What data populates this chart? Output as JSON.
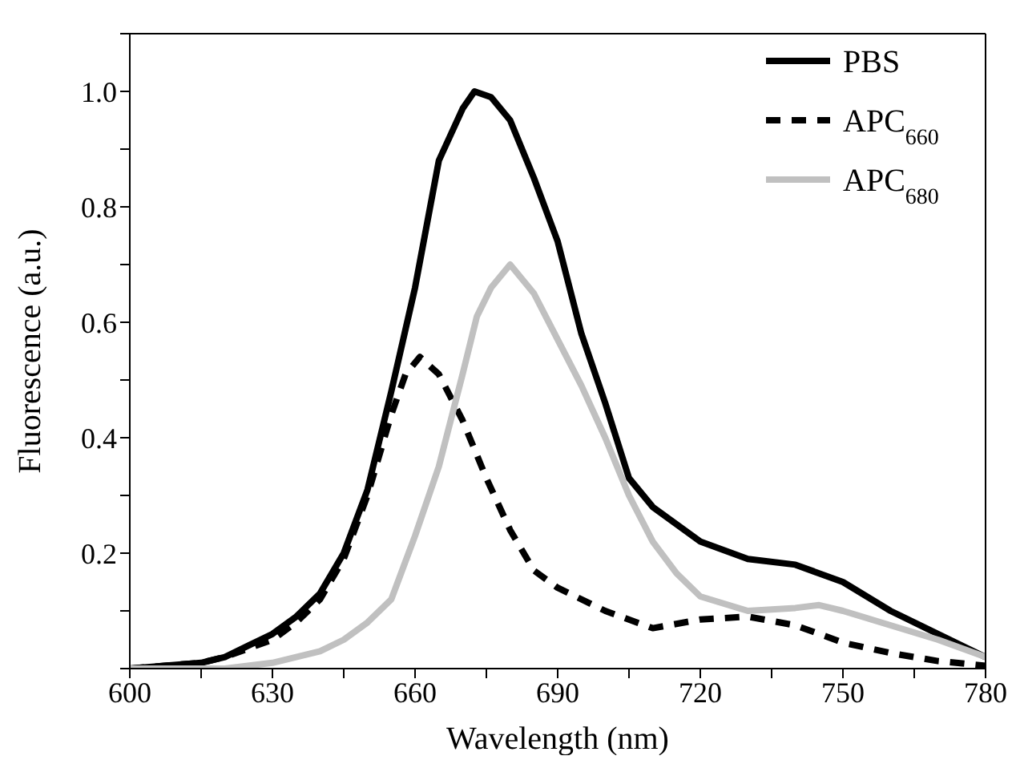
{
  "chart_data": {
    "type": "line",
    "xlabel": "Wavelength (nm)",
    "ylabel": "Fluorescence (a.u.)",
    "xlim": [
      600,
      780
    ],
    "ylim": [
      0,
      1.1
    ],
    "xticks": [
      600,
      {
        "value": 615,
        "label": null
      },
      630,
      {
        "value": 645,
        "label": null
      },
      660,
      {
        "value": 675,
        "label": null
      },
      690,
      {
        "value": 705,
        "label": null
      },
      720,
      {
        "value": 735,
        "label": null
      },
      750,
      {
        "value": 765,
        "label": null
      },
      780
    ],
    "yticks": [
      {
        "value": 0,
        "label": null
      },
      {
        "value": 0.1,
        "label": null
      },
      0.2,
      {
        "value": 0.3,
        "label": null
      },
      0.4,
      {
        "value": 0.5,
        "label": null
      },
      0.6,
      {
        "value": 0.7,
        "label": null
      },
      0.8,
      {
        "value": 0.9,
        "label": null
      },
      {
        "value": 1.0,
        "label": "1.0"
      },
      {
        "value": 1.1,
        "label": null
      }
    ],
    "legend": "top right",
    "marker": "none",
    "series": [
      {
        "name": "PBS",
        "color": "#000000",
        "line_style": "solid",
        "x": [
          600,
          615,
          620,
          625,
          630,
          635,
          640,
          645,
          650,
          655,
          660,
          665,
          670,
          672.5,
          676,
          680,
          685,
          690,
          695,
          700,
          705,
          710,
          720,
          730,
          740,
          750,
          760,
          770,
          780
        ],
        "values": [
          0,
          0.01,
          0.02,
          0.04,
          0.06,
          0.09,
          0.13,
          0.2,
          0.31,
          0.48,
          0.66,
          0.88,
          0.97,
          1.0,
          0.99,
          0.95,
          0.85,
          0.74,
          0.58,
          0.46,
          0.33,
          0.28,
          0.22,
          0.19,
          0.18,
          0.15,
          0.1,
          0.06,
          0.02
        ]
      },
      {
        "name": "APC$_{660}$",
        "color": "#000000",
        "line_style": "dashed",
        "x": [
          600,
          615,
          620,
          625,
          630,
          635,
          640,
          645,
          650,
          655,
          658,
          661,
          665,
          670,
          675,
          680,
          685,
          690,
          700,
          710,
          720,
          730,
          740,
          750,
          760,
          770,
          780
        ],
        "values": [
          0,
          0.01,
          0.02,
          0.035,
          0.05,
          0.08,
          0.12,
          0.19,
          0.3,
          0.44,
          0.51,
          0.54,
          0.51,
          0.43,
          0.33,
          0.24,
          0.17,
          0.14,
          0.1,
          0.07,
          0.085,
          0.09,
          0.075,
          0.045,
          0.027,
          0.013,
          0.005
        ]
      },
      {
        "name": "APC$_{680}$",
        "color": "#c0c0c0",
        "line_style": "solid",
        "x": [
          600,
          620,
          630,
          640,
          645,
          650,
          655,
          660,
          665,
          670,
          673,
          676,
          680,
          685,
          690,
          695,
          700,
          705,
          710,
          715,
          720,
          730,
          740,
          745,
          750,
          760,
          770,
          780
        ],
        "values": [
          0,
          0,
          0.01,
          0.03,
          0.05,
          0.08,
          0.12,
          0.23,
          0.35,
          0.51,
          0.61,
          0.66,
          0.7,
          0.65,
          0.57,
          0.49,
          0.4,
          0.3,
          0.22,
          0.165,
          0.125,
          0.1,
          0.105,
          0.11,
          0.1,
          0.075,
          0.05,
          0.02
        ]
      }
    ]
  }
}
